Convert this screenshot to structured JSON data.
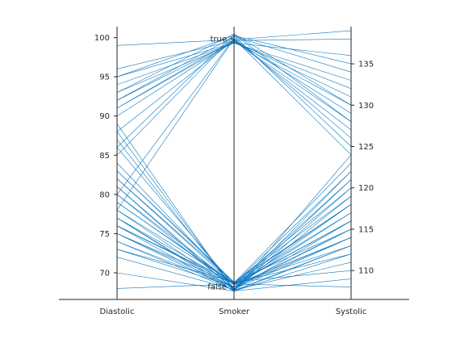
{
  "chart_data": {
    "type": "parallel_coordinates",
    "line_color": "#0072BD",
    "axis_color": "#262626",
    "axes": [
      {
        "name": "Diastolic",
        "range": [
          66.6,
          101.4
        ],
        "ticks": [
          70,
          75,
          80,
          85,
          90,
          95,
          100
        ],
        "tick_side": "left"
      },
      {
        "name": "Smoker",
        "categories": [
          "false",
          "true"
        ]
      },
      {
        "name": "Systolic",
        "range": [
          106.5,
          139.5
        ],
        "ticks": [
          110,
          115,
          120,
          125,
          130,
          135
        ],
        "tick_side": "right"
      }
    ],
    "records": [
      {
        "diastolic": 93,
        "smoker": "true",
        "systolic": 130
      },
      {
        "diastolic": 77,
        "smoker": "false",
        "systolic": 113
      },
      {
        "diastolic": 83,
        "smoker": "false",
        "systolic": 115
      },
      {
        "diastolic": 75,
        "smoker": "false",
        "systolic": 111
      },
      {
        "diastolic": 80,
        "smoker": "false",
        "systolic": 115
      },
      {
        "diastolic": 70,
        "smoker": "false",
        "systolic": 109
      },
      {
        "diastolic": 88,
        "smoker": "true",
        "systolic": 127
      },
      {
        "diastolic": 82,
        "smoker": "false",
        "systolic": 118
      },
      {
        "diastolic": 78,
        "smoker": "false",
        "systolic": 114
      },
      {
        "diastolic": 86,
        "smoker": "false",
        "systolic": 121
      },
      {
        "diastolic": 77,
        "smoker": "false",
        "systolic": 118
      },
      {
        "diastolic": 68,
        "smoker": "false",
        "systolic": 108
      },
      {
        "diastolic": 74,
        "smoker": "false",
        "systolic": 113
      },
      {
        "diastolic": 95,
        "smoker": "true",
        "systolic": 135
      },
      {
        "diastolic": 79,
        "smoker": "false",
        "systolic": 117
      },
      {
        "diastolic": 92,
        "smoker": "true",
        "systolic": 128
      },
      {
        "diastolic": 89,
        "smoker": "false",
        "systolic": 124
      },
      {
        "diastolic": 76,
        "smoker": "false",
        "systolic": 112
      },
      {
        "diastolic": 81,
        "smoker": "false",
        "systolic": 119
      },
      {
        "diastolic": 96,
        "smoker": "true",
        "systolic": 138
      },
      {
        "diastolic": 73,
        "smoker": "false",
        "systolic": 110
      },
      {
        "diastolic": 84,
        "smoker": "false",
        "systolic": 116
      },
      {
        "diastolic": 91,
        "smoker": "true",
        "systolic": 129
      },
      {
        "diastolic": 99,
        "smoker": "true",
        "systolic": 139
      },
      {
        "diastolic": 78,
        "smoker": "false",
        "systolic": 120
      },
      {
        "diastolic": 75,
        "smoker": "false",
        "systolic": 114
      },
      {
        "diastolic": 80,
        "smoker": "true",
        "systolic": 126
      },
      {
        "diastolic": 87,
        "smoker": "false",
        "systolic": 122
      },
      {
        "diastolic": 72,
        "smoker": "false",
        "systolic": 116
      },
      {
        "diastolic": 94,
        "smoker": "true",
        "systolic": 133
      },
      {
        "diastolic": 76,
        "smoker": "false",
        "systolic": 119
      },
      {
        "diastolic": 83,
        "smoker": "false",
        "systolic": 123
      },
      {
        "diastolic": 90,
        "smoker": "true",
        "systolic": 131
      },
      {
        "diastolic": 74,
        "smoker": "false",
        "systolic": 117
      },
      {
        "diastolic": 85,
        "smoker": "true",
        "systolic": 125
      },
      {
        "diastolic": 79,
        "smoker": "false",
        "systolic": 112
      },
      {
        "diastolic": 92,
        "smoker": "true",
        "systolic": 134
      },
      {
        "diastolic": 77,
        "smoker": "false",
        "systolic": 121
      },
      {
        "diastolic": 82,
        "smoker": "false",
        "systolic": 114
      },
      {
        "diastolic": 95,
        "smoker": "true",
        "systolic": 132
      },
      {
        "diastolic": 73,
        "smoker": "false",
        "systolic": 115
      },
      {
        "diastolic": 88,
        "smoker": "false",
        "systolic": 120
      },
      {
        "diastolic": 78,
        "smoker": "true",
        "systolic": 124
      },
      {
        "diastolic": 81,
        "smoker": "false",
        "systolic": 118
      },
      {
        "diastolic": 93,
        "smoker": "true",
        "systolic": 136
      },
      {
        "diastolic": 75,
        "smoker": "false",
        "systolic": 113
      },
      {
        "diastolic": 86,
        "smoker": "true",
        "systolic": 128
      },
      {
        "diastolic": 80,
        "smoker": "false",
        "systolic": 116
      },
      {
        "diastolic": 91,
        "smoker": "true",
        "systolic": 130
      },
      {
        "diastolic": 76,
        "smoker": "false",
        "systolic": 122
      }
    ]
  }
}
